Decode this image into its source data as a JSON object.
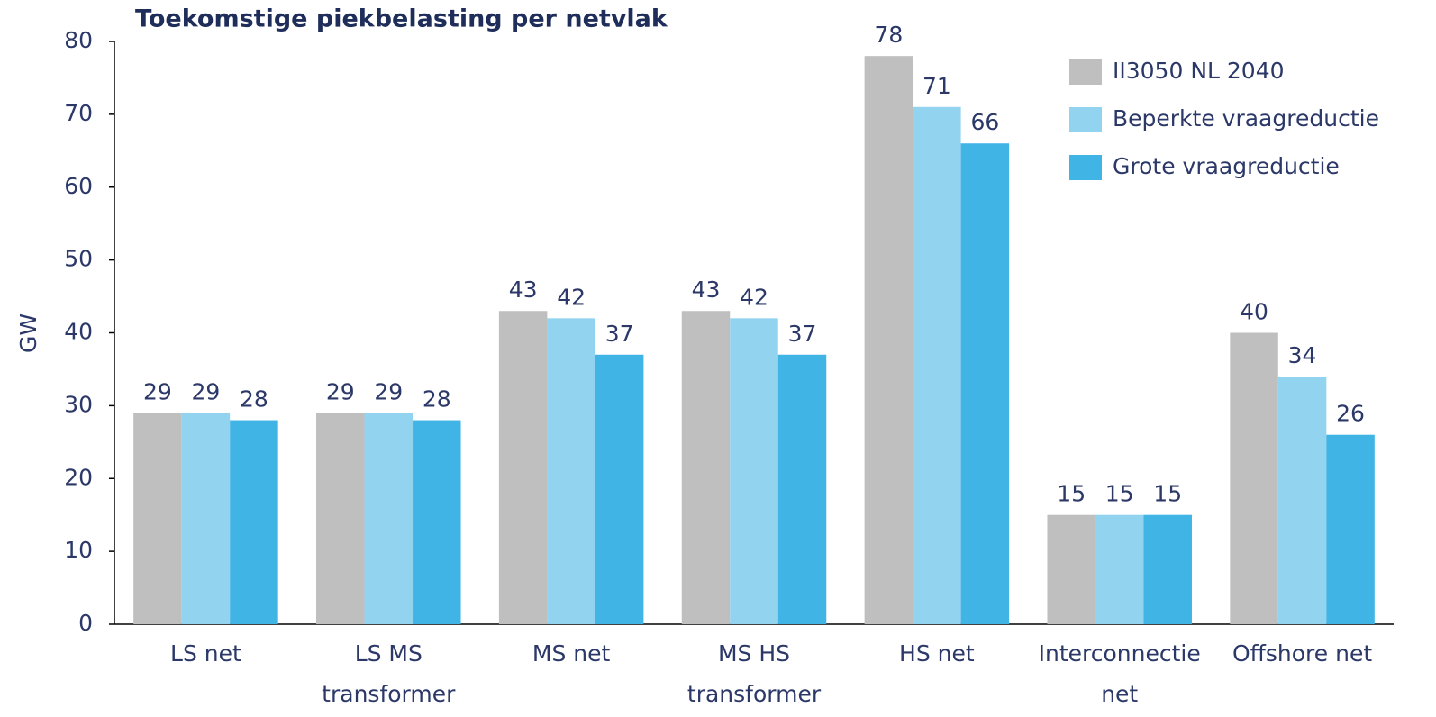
{
  "chart_data": {
    "type": "bar",
    "title": "Toekomstige piekbelasting per netvlak",
    "y_label": "GW",
    "categories": [
      [
        "LS net"
      ],
      [
        "LS MS",
        "transformer"
      ],
      [
        "MS net"
      ],
      [
        "MS HS",
        "transformer"
      ],
      [
        "HS net"
      ],
      [
        "Interconnectie",
        "net"
      ],
      [
        "Offshore net"
      ]
    ],
    "series": [
      {
        "name": "II3050 NL 2040",
        "color": "#bfbfbf",
        "values": [
          29,
          29,
          43,
          43,
          78,
          15,
          40
        ]
      },
      {
        "name": "Beperkte vraagreductie",
        "color": "#92d3ef",
        "values": [
          29,
          29,
          42,
          42,
          71,
          15,
          34
        ]
      },
      {
        "name": "Grote vraagreductie",
        "color": "#41b4e6",
        "values": [
          28,
          28,
          37,
          37,
          66,
          15,
          26
        ]
      }
    ],
    "ylim": [
      0,
      80
    ],
    "yticks": [
      0,
      10,
      20,
      30,
      40,
      50,
      60,
      70,
      80
    ],
    "grid": false,
    "legend": "top-right"
  }
}
